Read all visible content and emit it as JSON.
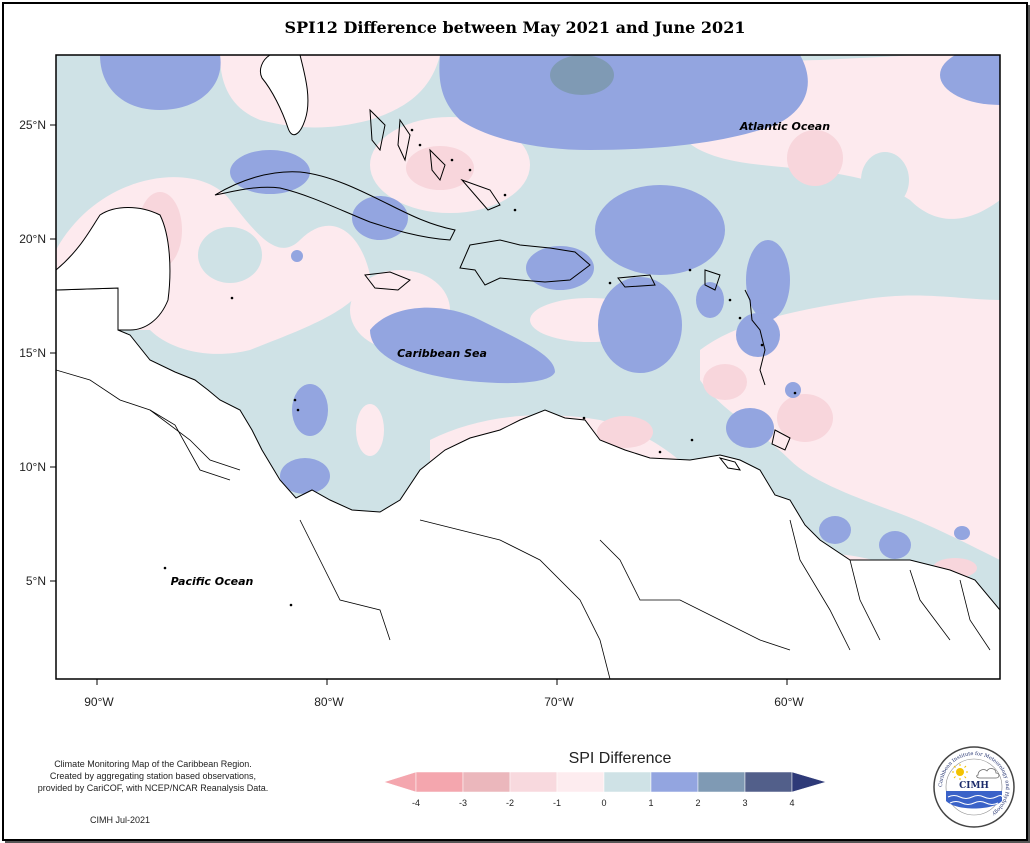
{
  "title": "SPI12 Difference between May 2021 and June 2021",
  "map": {
    "lat_labels": [
      "25°N",
      "20°N",
      "15°N",
      "10°N",
      "5°N"
    ],
    "lon_labels": [
      "90°W",
      "80°W",
      "70°W",
      "60°W"
    ],
    "place_labels": {
      "atlantic": "Atlantic Ocean",
      "caribbean": "Caribbean Sea",
      "pacific": "Pacific Ocean"
    }
  },
  "legend": {
    "title": "SPI Difference",
    "ticks": [
      "-4",
      "-3",
      "-2",
      "-1",
      "0",
      "1",
      "2",
      "3",
      "4"
    ],
    "colors": [
      "#f4a6ae",
      "#ebb7bc",
      "#f8d9de",
      "#fdecef",
      "#cfe2e6",
      "#93a5e0",
      "#7f9ab4",
      "#525f8a",
      "#2e3a78"
    ]
  },
  "palette": {
    "land": "#ffffff",
    "ocean_base": "#cfe2e6",
    "pink_light": "#fdeaee",
    "pink_mid": "#f8d6dc",
    "blue_mid": "#93a5e0",
    "blue_dark": "#7f9ab4"
  },
  "credit": {
    "line1": "Climate Monitoring Map of the Caribbean Region.",
    "line2": "Created by aggregating station based observations,",
    "line3": "provided by CariCOF, with NCEP/NCAR Reanalysis Data.",
    "date": "CIMH Jul-2021"
  },
  "logo": {
    "text": "CIMH",
    "ring_text": "Caribbean Institute for Meteorology and Hydrology"
  }
}
